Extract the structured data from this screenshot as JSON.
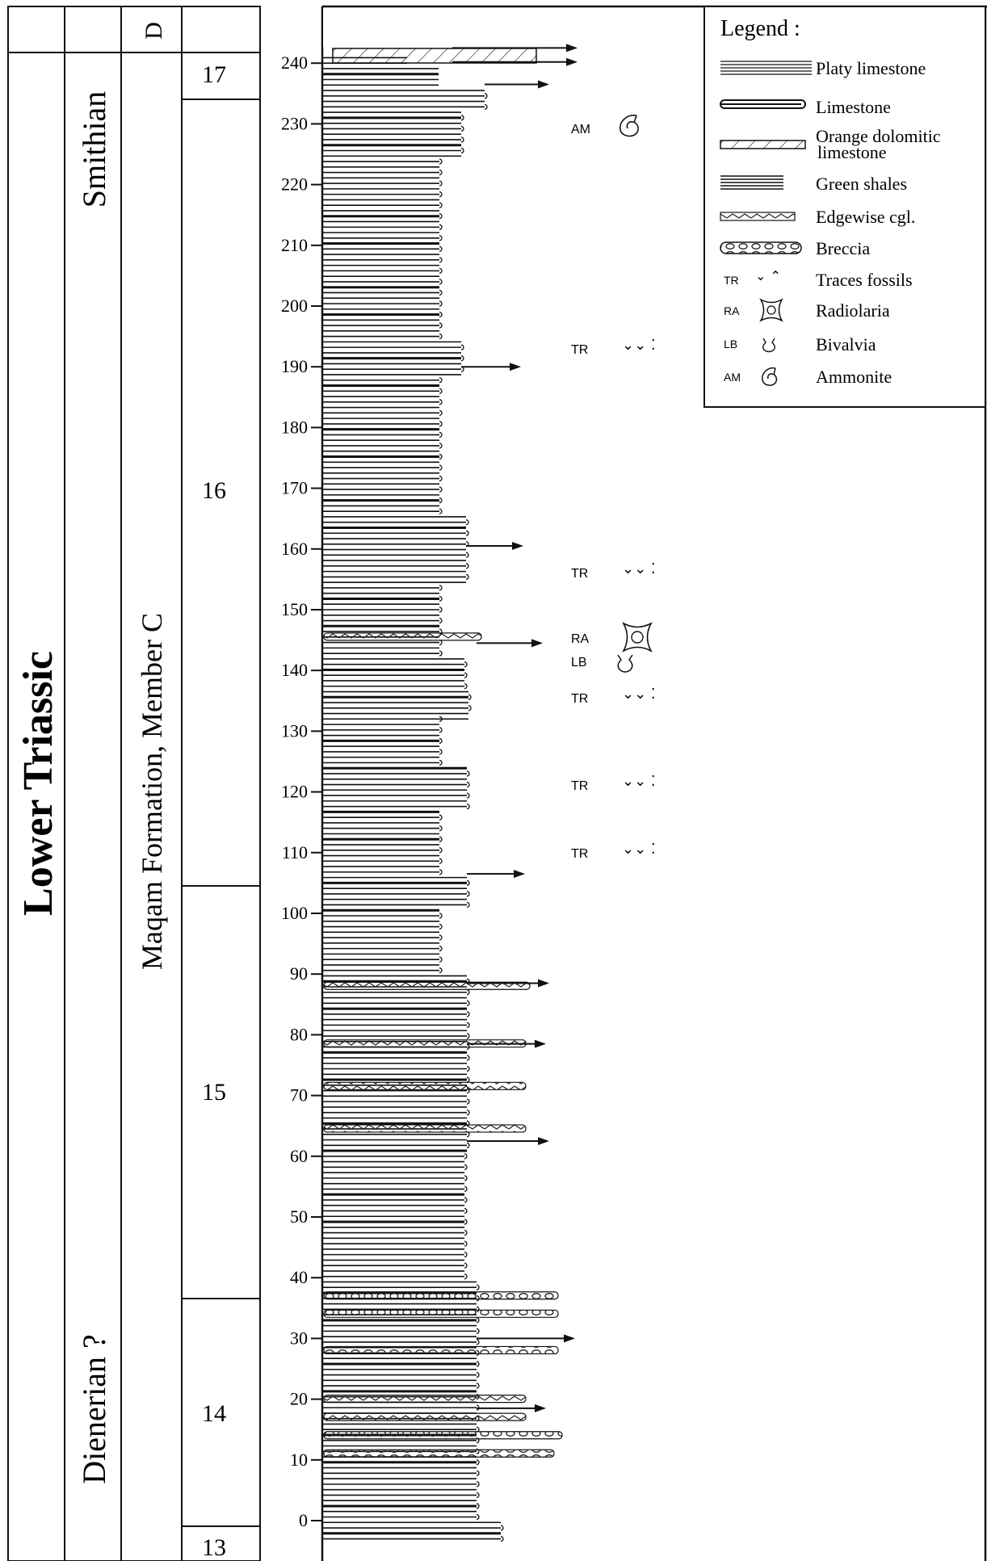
{
  "columns": {
    "system": "Lower Triassic",
    "stage_upper": "Smithian",
    "stage_lower": "Dienerian ?",
    "formation": "Maqam Formation, Member C",
    "col3_header": "D"
  },
  "units": [
    "17",
    "16",
    "15",
    "14",
    "13"
  ],
  "scale": {
    "ticks": [
      "240",
      "230",
      "220",
      "210",
      "200",
      "190",
      "180",
      "170",
      "160",
      "150",
      "140",
      "130",
      "120",
      "110",
      "100",
      "90",
      "80",
      "70",
      "60",
      "50",
      "40",
      "30",
      "20",
      "10",
      "0"
    ]
  },
  "legend": {
    "title": "Legend :",
    "items": [
      {
        "label": "Platy limestone",
        "icon": "platy-limestone-symbol"
      },
      {
        "label": "Limestone",
        "icon": "limestone-symbol"
      },
      {
        "label": "Orange dolomitic",
        "label2": "limestone",
        "icon": "dolomitic-limestone-symbol"
      },
      {
        "label": "Green shales",
        "icon": "green-shales-symbol"
      },
      {
        "label": "Edgewise cgl.",
        "icon": "edgewise-symbol"
      },
      {
        "label": "Breccia",
        "icon": "breccia-symbol"
      },
      {
        "code": "TR",
        "label": "Traces fossils",
        "icon": "trace-fossil-icon"
      },
      {
        "code": "RA",
        "label": "Radiolaria",
        "icon": "radiolaria-icon"
      },
      {
        "code": "LB",
        "label": "Bivalvia",
        "icon": "bivalvia-icon"
      },
      {
        "code": "AM",
        "label": "Ammonite",
        "icon": "ammonite-icon"
      }
    ]
  },
  "fossils": [
    {
      "code": "AM",
      "level_m": 229,
      "icon": "ammonite-icon"
    },
    {
      "code": "TR",
      "level_m": 191,
      "icon": "trace-fossil-icon"
    },
    {
      "code": "TR",
      "level_m": 156,
      "icon": "trace-fossil-icon"
    },
    {
      "code": "RA",
      "level_m": 145,
      "icon": "radiolaria-icon"
    },
    {
      "code": "LB",
      "level_m": 141,
      "icon": "bivalvia-icon"
    },
    {
      "code": "TR",
      "level_m": 136,
      "icon": "trace-fossil-icon"
    },
    {
      "code": "TR",
      "level_m": 122,
      "icon": "trace-fossil-icon"
    },
    {
      "code": "TR",
      "level_m": 110,
      "icon": "trace-fossil-icon"
    }
  ]
}
